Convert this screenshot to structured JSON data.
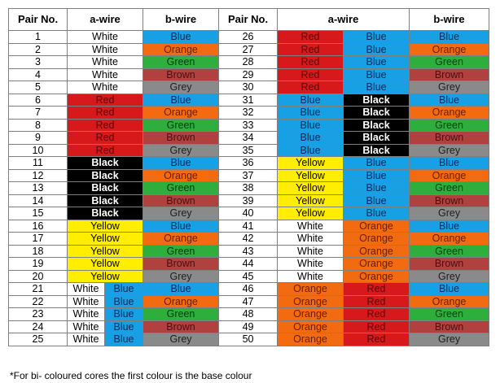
{
  "headers": [
    "Pair No.",
    "a-wire",
    "b-wire",
    "Pair No.",
    "a-wire",
    "b-wire"
  ],
  "colors": {
    "White": {
      "bg": "#ffffff",
      "fg": "#000000"
    },
    "Red": {
      "bg": "#d7191c",
      "fg": "#5a0a0a"
    },
    "Black": {
      "bg": "#000000",
      "fg": "#ffffff"
    },
    "Yellow": {
      "bg": "#ffee00",
      "fg": "#000000"
    },
    "Blue": {
      "bg": "#17a1e4",
      "fg": "#0b2a5a"
    },
    "Orange": {
      "bg": "#f26b10",
      "fg": "#6a1e00"
    },
    "Green": {
      "bg": "#2eae3d",
      "fg": "#0a3a10"
    },
    "Brown": {
      "bg": "#b0413e",
      "fg": "#4a1010"
    },
    "Grey": {
      "bg": "#8a8a8a",
      "fg": "#1e1e1e"
    }
  },
  "left_rows": [
    {
      "pair": "1",
      "a": [
        "White"
      ],
      "b": "Blue"
    },
    {
      "pair": "2",
      "a": [
        "White"
      ],
      "b": "Orange"
    },
    {
      "pair": "3",
      "a": [
        "White"
      ],
      "b": "Green"
    },
    {
      "pair": "4",
      "a": [
        "White"
      ],
      "b": "Brown"
    },
    {
      "pair": "5",
      "a": [
        "White"
      ],
      "b": "Grey"
    },
    {
      "pair": "6",
      "a": [
        "Red"
      ],
      "b": "Blue"
    },
    {
      "pair": "7",
      "a": [
        "Red"
      ],
      "b": "Orange"
    },
    {
      "pair": "8",
      "a": [
        "Red"
      ],
      "b": "Green"
    },
    {
      "pair": "9",
      "a": [
        "Red"
      ],
      "b": "Brown"
    },
    {
      "pair": "10",
      "a": [
        "Red"
      ],
      "b": "Grey"
    },
    {
      "pair": "11",
      "a": [
        "Black"
      ],
      "b": "Blue"
    },
    {
      "pair": "12",
      "a": [
        "Black"
      ],
      "b": "Orange"
    },
    {
      "pair": "13",
      "a": [
        "Black"
      ],
      "b": "Green"
    },
    {
      "pair": "14",
      "a": [
        "Black"
      ],
      "b": "Brown"
    },
    {
      "pair": "15",
      "a": [
        "Black"
      ],
      "b": "Grey"
    },
    {
      "pair": "16",
      "a": [
        "Yellow"
      ],
      "b": "Blue"
    },
    {
      "pair": "17",
      "a": [
        "Yellow"
      ],
      "b": "Orange"
    },
    {
      "pair": "18",
      "a": [
        "Yellow"
      ],
      "b": "Green"
    },
    {
      "pair": "19",
      "a": [
        "Yellow"
      ],
      "b": "Brown"
    },
    {
      "pair": "20",
      "a": [
        "Yellow"
      ],
      "b": "Grey"
    },
    {
      "pair": "21",
      "a": [
        "White",
        "Blue"
      ],
      "b": "Blue"
    },
    {
      "pair": "22",
      "a": [
        "White",
        "Blue"
      ],
      "b": "Orange"
    },
    {
      "pair": "23",
      "a": [
        "White",
        "Blue"
      ],
      "b": "Green"
    },
    {
      "pair": "24",
      "a": [
        "White",
        "Blue"
      ],
      "b": "Brown"
    },
    {
      "pair": "25",
      "a": [
        "White",
        "Blue"
      ],
      "b": "Grey"
    }
  ],
  "right_rows": [
    {
      "pair": "26",
      "a": [
        "Red",
        "Blue"
      ],
      "b": "Blue"
    },
    {
      "pair": "27",
      "a": [
        "Red",
        "Blue"
      ],
      "b": "Orange"
    },
    {
      "pair": "28",
      "a": [
        "Red",
        "Blue"
      ],
      "b": "Green"
    },
    {
      "pair": "29",
      "a": [
        "Red",
        "Blue"
      ],
      "b": "Brown"
    },
    {
      "pair": "30",
      "a": [
        "Red",
        "Blue"
      ],
      "b": "Grey"
    },
    {
      "pair": "31",
      "a": [
        "Blue",
        "Black"
      ],
      "b": "Blue"
    },
    {
      "pair": "32",
      "a": [
        "Blue",
        "Black"
      ],
      "b": "Orange"
    },
    {
      "pair": "33",
      "a": [
        "Blue",
        "Black"
      ],
      "b": "Green"
    },
    {
      "pair": "34",
      "a": [
        "Blue",
        "Black"
      ],
      "b": "Brown"
    },
    {
      "pair": "35",
      "a": [
        "Blue",
        "Black"
      ],
      "b": "Grey"
    },
    {
      "pair": "36",
      "a": [
        "Yellow",
        "Blue"
      ],
      "b": "Blue"
    },
    {
      "pair": "37",
      "a": [
        "Yellow",
        "Blue"
      ],
      "b": "Orange"
    },
    {
      "pair": "38",
      "a": [
        "Yellow",
        "Blue"
      ],
      "b": "Green"
    },
    {
      "pair": "39",
      "a": [
        "Yellow",
        "Blue"
      ],
      "b": "Brown"
    },
    {
      "pair": "40",
      "a": [
        "Yellow",
        "Blue"
      ],
      "b": "Grey"
    },
    {
      "pair": "41",
      "a": [
        "White",
        "Orange"
      ],
      "b": "Blue"
    },
    {
      "pair": "42",
      "a": [
        "White",
        "Orange"
      ],
      "b": "Orange"
    },
    {
      "pair": "43",
      "a": [
        "White",
        "Orange"
      ],
      "b": "Green"
    },
    {
      "pair": "44",
      "a": [
        "White",
        "Orange"
      ],
      "b": "Brown"
    },
    {
      "pair": "45",
      "a": [
        "White",
        "Orange"
      ],
      "b": "Grey"
    },
    {
      "pair": "46",
      "a": [
        "Orange",
        "Red"
      ],
      "b": "Blue"
    },
    {
      "pair": "47",
      "a": [
        "Orange",
        "Red"
      ],
      "b": "Orange"
    },
    {
      "pair": "48",
      "a": [
        "Orange",
        "Red"
      ],
      "b": "Green"
    },
    {
      "pair": "49",
      "a": [
        "Orange",
        "Red"
      ],
      "b": "Brown"
    },
    {
      "pair": "50",
      "a": [
        "Orange",
        "Red"
      ],
      "b": "Grey"
    }
  ],
  "footnote": "*For bi- coloured cores the first colour is the base colour"
}
